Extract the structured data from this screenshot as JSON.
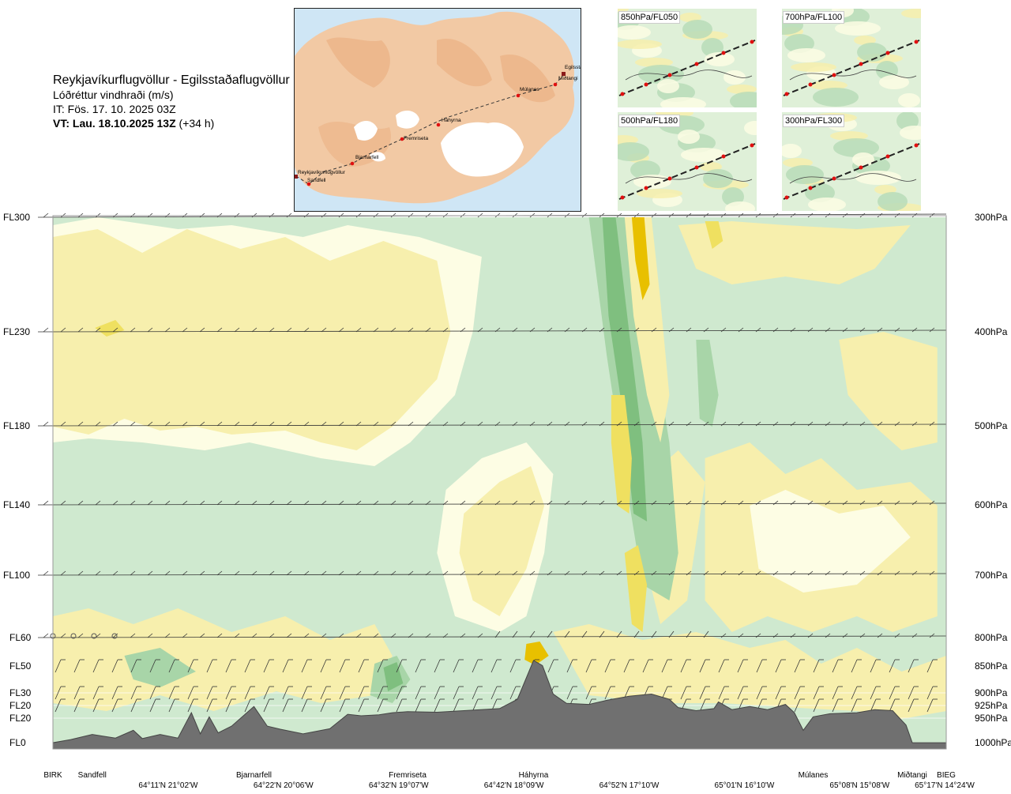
{
  "header": {
    "route": "Reykjavíkurflugvöllur - Egilsstaðaflugvöllur",
    "variable": "Lóðréttur vindhraði (m/s)",
    "init_time": "IT: Fös. 17. 10. 2025 03Z",
    "valid_time_bold": "VT: Lau. 18.10.2025 13Z",
    "valid_time_suffix": "(+34 h)"
  },
  "map": {
    "places": [
      "Egilsstaðir",
      "Miðtangi",
      "Múlanes",
      "Háhyrna",
      "Fremriseta",
      "Bjarnarfell",
      "Reykjavíkurflugvöllur",
      "Sandfell"
    ],
    "colors": {
      "sea": "#cfe6f5",
      "land": "#f2c9a4",
      "glacier": "#ffffff",
      "route": "#333333",
      "point": "#e01010"
    }
  },
  "mini_maps": [
    {
      "label": "850hPa/FL050"
    },
    {
      "label": "700hPa/FL100"
    },
    {
      "label": "500hPa/FL180"
    },
    {
      "label": "300hPa/FL300"
    }
  ],
  "chart_data": {
    "type": "heatmap",
    "title": "",
    "variable": "Lóðréttur vindhraði (m/s)",
    "left_axis_labels": [
      "FL300",
      "FL230",
      "FL180",
      "FL140",
      "FL100",
      "FL60",
      "FL50",
      "FL30",
      "FL20",
      "FL20",
      "FL0"
    ],
    "right_axis_labels": [
      "300hPa",
      "400hPa",
      "500hPa",
      "600hPa",
      "700hPa",
      "800hPa",
      "850hPa",
      "900hPa",
      "925hPa",
      "950hPa",
      "1000hPa"
    ],
    "pressure_levels_hPa": [
      300,
      400,
      500,
      600,
      700,
      800,
      850,
      900,
      925,
      950,
      1000
    ],
    "waypoints": [
      {
        "name": "BIRK",
        "x": 0.0
      },
      {
        "name": "Sandfell",
        "x": 0.044
      },
      {
        "name": "Bjarnarfell",
        "x": 0.225
      },
      {
        "name": "Fremriseta",
        "x": 0.397
      },
      {
        "name": "Háhyrna",
        "x": 0.538
      },
      {
        "name": "Múlanes",
        "x": 0.851
      },
      {
        "name": "Miðtangi",
        "x": 0.962
      },
      {
        "name": "BIEG",
        "x": 1.0
      }
    ],
    "coordinate_labels": [
      {
        "text": "64°11'N 21°02'W",
        "x": 0.129
      },
      {
        "text": "64°22'N 20°06'W",
        "x": 0.258
      },
      {
        "text": "64°32'N 19°07'W",
        "x": 0.387
      },
      {
        "text": "64°42'N 18°09'W",
        "x": 0.516
      },
      {
        "text": "64°52'N 17°10'W",
        "x": 0.645
      },
      {
        "text": "65°01'N 16°10'W",
        "x": 0.774
      },
      {
        "text": "65°08'N 15°08'W",
        "x": 0.903
      },
      {
        "text": "65°17'N 14°24'W",
        "x": 1.0
      }
    ],
    "x_range": [
      0,
      1
    ],
    "y_range_hPa": [
      1000,
      300
    ],
    "grid": false,
    "legend": "none",
    "colors": {
      "strong_descent": "#7fbf7f",
      "descent": "#a8d5a8",
      "weak_descent": "#cfe9cf",
      "near_zero": "#fdfde4",
      "weak_ascent": "#f7efad",
      "ascent": "#efe060",
      "strong_ascent": "#e8c000",
      "terrain": "#707070"
    },
    "terrain_profile_m": [
      {
        "x": 0.0,
        "m": 60
      },
      {
        "x": 0.02,
        "m": 120
      },
      {
        "x": 0.044,
        "m": 220
      },
      {
        "x": 0.07,
        "m": 150
      },
      {
        "x": 0.09,
        "m": 300
      },
      {
        "x": 0.1,
        "m": 140
      },
      {
        "x": 0.12,
        "m": 220
      },
      {
        "x": 0.14,
        "m": 150
      },
      {
        "x": 0.155,
        "m": 640
      },
      {
        "x": 0.165,
        "m": 230
      },
      {
        "x": 0.175,
        "m": 560
      },
      {
        "x": 0.185,
        "m": 250
      },
      {
        "x": 0.2,
        "m": 380
      },
      {
        "x": 0.225,
        "m": 760
      },
      {
        "x": 0.24,
        "m": 380
      },
      {
        "x": 0.255,
        "m": 320
      },
      {
        "x": 0.28,
        "m": 230
      },
      {
        "x": 0.31,
        "m": 330
      },
      {
        "x": 0.33,
        "m": 610
      },
      {
        "x": 0.345,
        "m": 580
      },
      {
        "x": 0.365,
        "m": 600
      },
      {
        "x": 0.38,
        "m": 640
      },
      {
        "x": 0.397,
        "m": 660
      },
      {
        "x": 0.43,
        "m": 650
      },
      {
        "x": 0.46,
        "m": 680
      },
      {
        "x": 0.5,
        "m": 720
      },
      {
        "x": 0.52,
        "m": 900
      },
      {
        "x": 0.538,
        "m": 1650
      },
      {
        "x": 0.548,
        "m": 1550
      },
      {
        "x": 0.56,
        "m": 1000
      },
      {
        "x": 0.575,
        "m": 820
      },
      {
        "x": 0.6,
        "m": 800
      },
      {
        "x": 0.62,
        "m": 880
      },
      {
        "x": 0.645,
        "m": 960
      },
      {
        "x": 0.67,
        "m": 1000
      },
      {
        "x": 0.69,
        "m": 900
      },
      {
        "x": 0.7,
        "m": 740
      },
      {
        "x": 0.72,
        "m": 680
      },
      {
        "x": 0.74,
        "m": 720
      },
      {
        "x": 0.745,
        "m": 850
      },
      {
        "x": 0.76,
        "m": 700
      },
      {
        "x": 0.78,
        "m": 760
      },
      {
        "x": 0.8,
        "m": 700
      },
      {
        "x": 0.82,
        "m": 800
      },
      {
        "x": 0.83,
        "m": 640
      },
      {
        "x": 0.84,
        "m": 300
      },
      {
        "x": 0.851,
        "m": 560
      },
      {
        "x": 0.87,
        "m": 620
      },
      {
        "x": 0.9,
        "m": 640
      },
      {
        "x": 0.92,
        "m": 700
      },
      {
        "x": 0.94,
        "m": 680
      },
      {
        "x": 0.955,
        "m": 400
      },
      {
        "x": 0.962,
        "m": 60
      },
      {
        "x": 1.0,
        "m": 60
      }
    ]
  }
}
